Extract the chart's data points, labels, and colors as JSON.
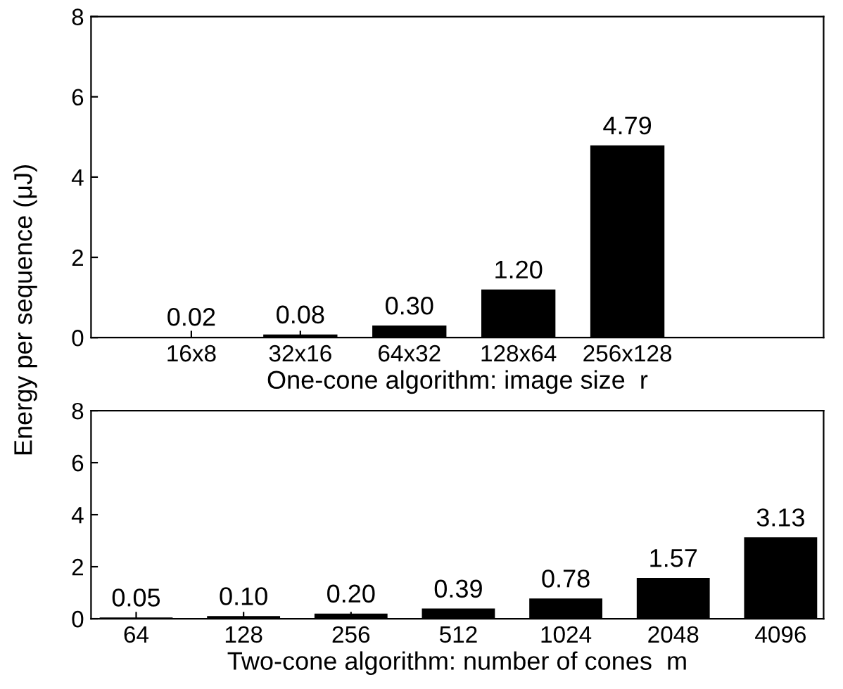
{
  "chart_data": [
    {
      "type": "bar",
      "ylabel": "Energy per sequence (μJ)",
      "xlabel": "One-cone algorithm: image size  r",
      "categories": [
        "16x8",
        "32x16",
        "64x32",
        "128x64",
        "256x128"
      ],
      "values": [
        0.02,
        0.08,
        0.3,
        1.2,
        4.79
      ],
      "value_labels": [
        "0.02",
        "0.08",
        "0.30",
        "1.20",
        "4.79"
      ],
      "color": "#000000",
      "ylim": [
        0,
        8
      ],
      "yticks": [
        0,
        2,
        4,
        6,
        8
      ],
      "grid": false
    },
    {
      "type": "bar",
      "xlabel": "Two-cone algorithm: number of cones  m",
      "categories": [
        "64",
        "128",
        "256",
        "512",
        "1024",
        "2048",
        "4096"
      ],
      "values": [
        0.05,
        0.1,
        0.2,
        0.39,
        0.78,
        1.57,
        3.13
      ],
      "value_labels": [
        "0.05",
        "0.10",
        "0.20",
        "0.39",
        "0.78",
        "1.57",
        "3.13"
      ],
      "color": "#000000",
      "ylim": [
        0,
        8
      ],
      "yticks": [
        0,
        2,
        4,
        6,
        8
      ],
      "grid": false
    }
  ]
}
